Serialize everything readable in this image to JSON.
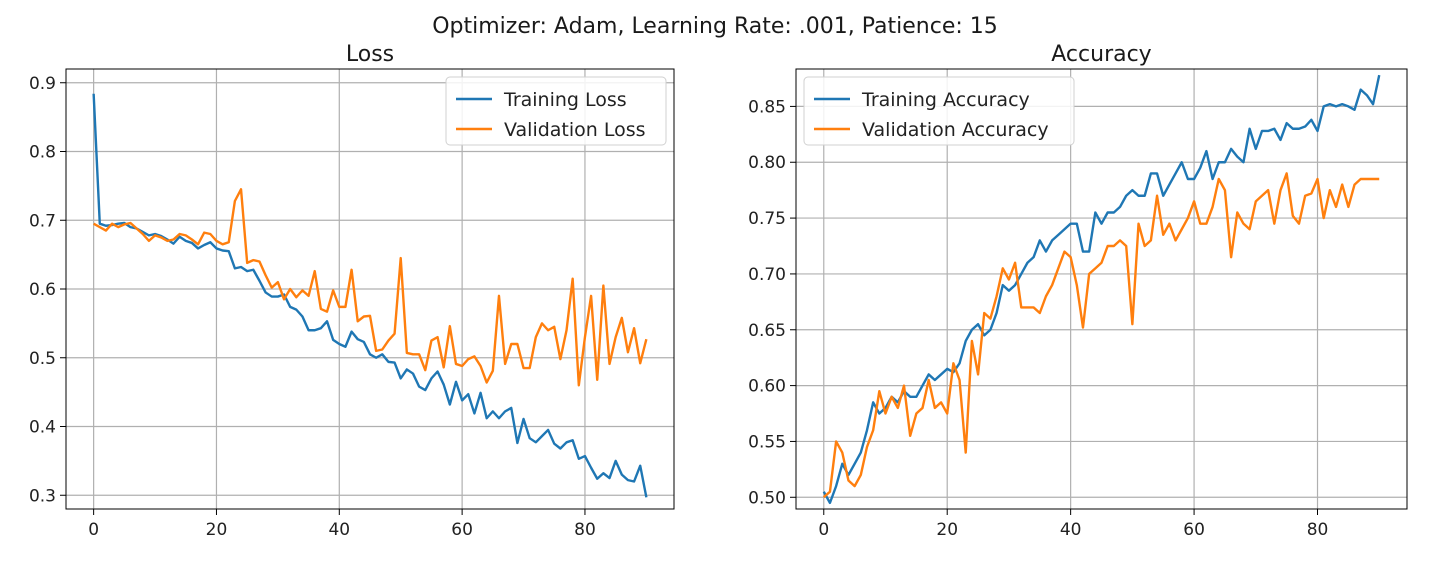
{
  "suptitle": "Optimizer: Adam, Learning Rate: .001, Patience: 15",
  "colors": {
    "training": "#1f77b4",
    "validation": "#ff7f0e"
  },
  "chart_data": [
    {
      "type": "line",
      "title": "Loss",
      "xlabel": "",
      "ylabel": "",
      "xlim": [
        -4.5,
        94.5
      ],
      "ylim": [
        0.28,
        0.92
      ],
      "xticks": [
        0,
        20,
        40,
        60,
        80
      ],
      "yticks": [
        0.3,
        0.4,
        0.5,
        0.6,
        0.7,
        0.8,
        0.9
      ],
      "ytick_labels": [
        "0.3",
        "0.4",
        "0.5",
        "0.6",
        "0.7",
        "0.8",
        "0.9"
      ],
      "grid": true,
      "legend_position": "upper right",
      "series": [
        {
          "name": "Training Loss",
          "color": "#1f77b4",
          "values": [
            0.884,
            0.695,
            0.692,
            0.693,
            0.695,
            0.696,
            0.69,
            0.688,
            0.683,
            0.678,
            0.68,
            0.677,
            0.672,
            0.666,
            0.676,
            0.67,
            0.667,
            0.659,
            0.664,
            0.668,
            0.659,
            0.656,
            0.655,
            0.63,
            0.632,
            0.626,
            0.628,
            0.612,
            0.595,
            0.589,
            0.589,
            0.592,
            0.574,
            0.57,
            0.56,
            0.54,
            0.54,
            0.543,
            0.553,
            0.526,
            0.52,
            0.516,
            0.538,
            0.527,
            0.523,
            0.505,
            0.5,
            0.505,
            0.494,
            0.493,
            0.47,
            0.483,
            0.477,
            0.458,
            0.453,
            0.47,
            0.48,
            0.461,
            0.432,
            0.465,
            0.438,
            0.447,
            0.419,
            0.449,
            0.412,
            0.422,
            0.412,
            0.422,
            0.427,
            0.376,
            0.411,
            0.383,
            0.377,
            0.386,
            0.395,
            0.375,
            0.368,
            0.377,
            0.38,
            0.353,
            0.357,
            0.34,
            0.324,
            0.332,
            0.325,
            0.35,
            0.33,
            0.322,
            0.32,
            0.343,
            0.297
          ]
        },
        {
          "name": "Validation Loss",
          "color": "#ff7f0e",
          "values": [
            0.695,
            0.69,
            0.685,
            0.695,
            0.69,
            0.694,
            0.696,
            0.688,
            0.68,
            0.67,
            0.678,
            0.675,
            0.67,
            0.672,
            0.68,
            0.678,
            0.672,
            0.665,
            0.682,
            0.68,
            0.67,
            0.665,
            0.668,
            0.728,
            0.745,
            0.638,
            0.642,
            0.64,
            0.62,
            0.602,
            0.61,
            0.585,
            0.6,
            0.588,
            0.598,
            0.59,
            0.626,
            0.571,
            0.567,
            0.598,
            0.574,
            0.574,
            0.628,
            0.553,
            0.56,
            0.561,
            0.51,
            0.512,
            0.525,
            0.535,
            0.645,
            0.507,
            0.505,
            0.505,
            0.482,
            0.525,
            0.53,
            0.486,
            0.546,
            0.491,
            0.488,
            0.498,
            0.502,
            0.488,
            0.464,
            0.481,
            0.59,
            0.491,
            0.52,
            0.52,
            0.485,
            0.485,
            0.53,
            0.55,
            0.54,
            0.545,
            0.498,
            0.54,
            0.615,
            0.46,
            0.53,
            0.59,
            0.468,
            0.605,
            0.491,
            0.53,
            0.558,
            0.508,
            0.543,
            0.492,
            0.527
          ]
        }
      ]
    },
    {
      "type": "line",
      "title": "Accuracy",
      "xlabel": "",
      "ylabel": "",
      "xlim": [
        -4.5,
        94.5
      ],
      "ylim": [
        0.4895,
        0.8835
      ],
      "xticks": [
        0,
        20,
        40,
        60,
        80
      ],
      "yticks": [
        0.5,
        0.55,
        0.6,
        0.65,
        0.7,
        0.75,
        0.8,
        0.85
      ],
      "ytick_labels": [
        "0.50",
        "0.55",
        "0.60",
        "0.65",
        "0.70",
        "0.75",
        "0.80",
        "0.85"
      ],
      "grid": true,
      "legend_position": "upper left",
      "series": [
        {
          "name": "Training Accuracy",
          "color": "#1f77b4",
          "values": [
            0.505,
            0.495,
            0.51,
            0.53,
            0.52,
            0.53,
            0.54,
            0.56,
            0.585,
            0.575,
            0.58,
            0.59,
            0.585,
            0.595,
            0.59,
            0.59,
            0.6,
            0.61,
            0.605,
            0.61,
            0.615,
            0.612,
            0.62,
            0.64,
            0.65,
            0.655,
            0.645,
            0.65,
            0.665,
            0.69,
            0.685,
            0.69,
            0.7,
            0.71,
            0.715,
            0.73,
            0.72,
            0.73,
            0.735,
            0.74,
            0.745,
            0.745,
            0.72,
            0.72,
            0.755,
            0.745,
            0.755,
            0.755,
            0.76,
            0.77,
            0.775,
            0.77,
            0.77,
            0.79,
            0.79,
            0.77,
            0.78,
            0.79,
            0.8,
            0.785,
            0.785,
            0.795,
            0.81,
            0.785,
            0.8,
            0.8,
            0.812,
            0.805,
            0.8,
            0.83,
            0.812,
            0.828,
            0.828,
            0.83,
            0.82,
            0.835,
            0.83,
            0.83,
            0.832,
            0.838,
            0.828,
            0.85,
            0.852,
            0.85,
            0.852,
            0.85,
            0.847,
            0.865,
            0.86,
            0.852,
            0.878
          ]
        },
        {
          "name": "Validation Accuracy",
          "color": "#ff7f0e",
          "values": [
            0.5,
            0.505,
            0.55,
            0.54,
            0.515,
            0.51,
            0.52,
            0.545,
            0.56,
            0.595,
            0.575,
            0.59,
            0.58,
            0.6,
            0.555,
            0.575,
            0.58,
            0.605,
            0.58,
            0.585,
            0.575,
            0.62,
            0.605,
            0.54,
            0.64,
            0.61,
            0.665,
            0.66,
            0.68,
            0.705,
            0.695,
            0.71,
            0.67,
            0.67,
            0.67,
            0.665,
            0.68,
            0.69,
            0.705,
            0.72,
            0.715,
            0.69,
            0.652,
            0.7,
            0.705,
            0.71,
            0.725,
            0.725,
            0.73,
            0.725,
            0.655,
            0.745,
            0.725,
            0.73,
            0.77,
            0.735,
            0.745,
            0.73,
            0.74,
            0.75,
            0.765,
            0.745,
            0.745,
            0.76,
            0.785,
            0.775,
            0.715,
            0.755,
            0.745,
            0.74,
            0.765,
            0.77,
            0.775,
            0.745,
            0.775,
            0.79,
            0.752,
            0.745,
            0.77,
            0.772,
            0.785,
            0.75,
            0.775,
            0.76,
            0.78,
            0.76,
            0.78,
            0.785,
            0.785,
            0.785,
            0.785
          ]
        }
      ]
    }
  ]
}
